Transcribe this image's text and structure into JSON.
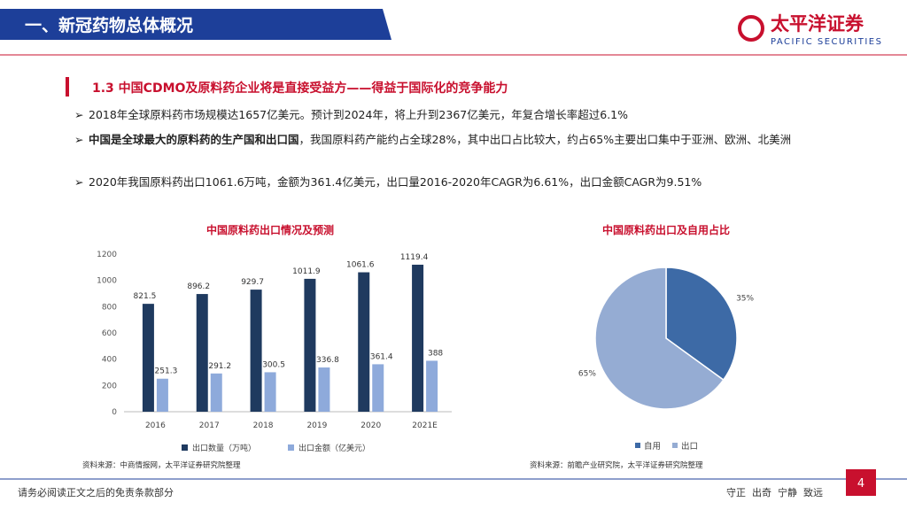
{
  "header": {
    "title": "一、新冠药物总体概况",
    "logo_cn": "太平洋证券",
    "logo_en": "PACIFIC SECURITIES"
  },
  "section_title": "1.3 中国CDMO及原料药企业将是直接受益方——得益于国际化的竞争能力",
  "bullets": [
    {
      "text": "2018年全球原料药市场规模达1657亿美元。预计到2024年，将上升到2367亿美元，年复合增长率超过6.1%"
    },
    {
      "bold": "中国是全球最大的原料药的生产国和出口国",
      "text": "，我国原料药产能约占全球28%，其中出口占比较大，约占65%主要出口集中于亚洲、欧洲、北美洲"
    },
    {
      "text": "2020年我国原料药出口1061.6万吨，金额为361.4亿美元，出口量2016-2020年CAGR为6.61%，出口金额CAGR为9.51%"
    }
  ],
  "chart_data": [
    {
      "type": "bar",
      "title": "中国原料药出口情况及预测",
      "categories": [
        "2016",
        "2017",
        "2018",
        "2019",
        "2020",
        "2021E"
      ],
      "series": [
        {
          "name": "出口数量（万吨）",
          "color": "#1f3a5f",
          "values": [
            821.5,
            896.2,
            929.7,
            1011.9,
            1061.6,
            1119.4
          ]
        },
        {
          "name": "出口金额（亿美元）",
          "color": "#8eaadb",
          "values": [
            251.3,
            291.2,
            300.5,
            336.8,
            361.4,
            388
          ]
        }
      ],
      "ylim": [
        0,
        1200
      ],
      "yticks": [
        0,
        200,
        400,
        600,
        800,
        1000,
        1200
      ],
      "grid": false,
      "source": "资料来源：中商情报网，太平洋证券研究院整理"
    },
    {
      "type": "pie",
      "title": "中国原料药出口及自用占比",
      "categories": [
        "自用",
        "出口"
      ],
      "values": [
        35,
        65
      ],
      "value_labels": [
        "35%",
        "65%"
      ],
      "colors": [
        "#3d6aa6",
        "#95acd3"
      ],
      "source": "资料来源：前瞻产业研究院，太平洋证券研究院整理"
    }
  ],
  "footer": {
    "disclaimer": "请务必阅读正文之后的免责条款部分",
    "motto": "守正  出奇  宁静  致远",
    "page": 4
  }
}
